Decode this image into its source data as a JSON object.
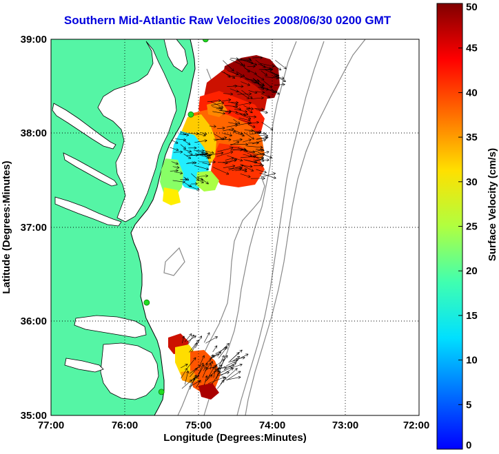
{
  "title": "Southern Mid-Atlantic Raw Velocities 2008/06/30 0200 GMT",
  "x_axis": {
    "label": "Longitude (Degrees:Minutes)",
    "ticks": [
      "77:00",
      "76:00",
      "75:00",
      "74:00",
      "73:00",
      "72:00"
    ]
  },
  "y_axis": {
    "label": "Latitude (Degrees:Minutes)",
    "ticks": [
      "39:00",
      "38:00",
      "37:00",
      "36:00",
      "35:00"
    ]
  },
  "colorbar": {
    "label": "Surface Velocity (cm/s)",
    "min": 0,
    "max": 50,
    "ticks": [
      "50",
      "45",
      "40",
      "35",
      "30",
      "25",
      "20",
      "15",
      "10",
      "5",
      "0"
    ]
  },
  "colors": {
    "land": "#55f5a5",
    "coast": "#000000",
    "bathymetry": "#888888",
    "station": "#22dd22",
    "title": "#0000dd"
  },
  "stations": [
    {
      "lon": -74.9,
      "lat": 39.0
    },
    {
      "lon": -75.1,
      "lat": 38.2
    },
    {
      "lon": -75.7,
      "lat": 36.2
    },
    {
      "lon": -75.5,
      "lat": 35.25
    }
  ]
}
